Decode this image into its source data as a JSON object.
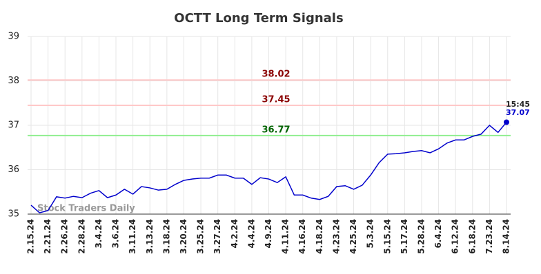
{
  "chart_data": {
    "type": "line",
    "title": "OCTT Long Term Signals",
    "categories": [
      "2.15.24",
      null,
      "2.21.24",
      null,
      "2.26.24",
      null,
      "2.28.24",
      null,
      "3.4.24",
      null,
      "3.6.24",
      null,
      "3.11.24",
      null,
      "3.13.24",
      null,
      "3.18.24",
      null,
      "3.20.24",
      null,
      "3.25.24",
      null,
      "3.27.24",
      null,
      "4.2.24",
      null,
      "4.4.24",
      null,
      "4.9.24",
      null,
      "4.11.24",
      null,
      "4.16.24",
      null,
      "4.18.24",
      null,
      "4.23.24",
      null,
      "4.25.24",
      null,
      "5.3.24",
      null,
      "5.15.24",
      null,
      "5.17.24",
      null,
      "5.28.24",
      null,
      "6.4.24",
      null,
      "6.12.24",
      null,
      "6.18.24",
      null,
      "7.23.24",
      null,
      "8.14.24"
    ],
    "values": [
      35.2,
      35.03,
      35.08,
      35.39,
      35.36,
      35.4,
      35.37,
      35.47,
      35.53,
      35.37,
      35.43,
      35.56,
      35.45,
      35.62,
      35.59,
      35.54,
      35.56,
      35.67,
      35.76,
      35.79,
      35.81,
      35.81,
      35.88,
      35.88,
      35.81,
      35.81,
      35.67,
      35.82,
      35.79,
      35.71,
      35.84,
      35.43,
      35.43,
      35.36,
      35.33,
      35.4,
      35.62,
      35.64,
      35.56,
      35.65,
      35.88,
      36.16,
      36.35,
      36.36,
      36.38,
      36.41,
      36.43,
      36.38,
      36.47,
      36.6,
      36.67,
      36.67,
      36.75,
      36.8,
      37.0,
      36.84,
      37.07
    ],
    "color": "#0000cc",
    "ylim": [
      35,
      39
    ],
    "yticks": [
      35,
      36,
      37,
      38,
      39
    ],
    "grid": true,
    "levels": [
      {
        "value": 38.02,
        "color": "#ffc8c8",
        "label_color": "#8b0000"
      },
      {
        "value": 37.45,
        "color": "#ffc8c8",
        "label_color": "#8b0000"
      },
      {
        "value": 36.77,
        "color": "#90ee90",
        "label_color": "#006400"
      }
    ],
    "last_time": "15:45",
    "watermark": "Stock Traders Daily"
  }
}
